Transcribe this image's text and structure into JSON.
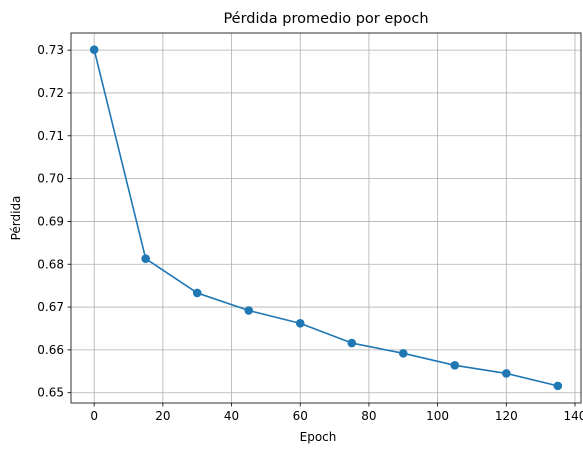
{
  "chart_data": {
    "type": "line",
    "title": "Pérdida promedio por epoch",
    "xlabel": "Epoch",
    "ylabel": "Pérdida",
    "x": [
      0,
      15,
      30,
      45,
      60,
      75,
      90,
      105,
      120,
      135
    ],
    "series": [
      {
        "values": [
          0.7301,
          0.6813,
          0.6733,
          0.6692,
          0.6662,
          0.6616,
          0.6592,
          0.6564,
          0.6545,
          0.6516
        ],
        "color": "#1f77b4",
        "marker": "circle"
      }
    ],
    "xlim": [
      -6.75,
      141.75
    ],
    "ylim": [
      0.6476,
      0.734
    ],
    "xticks": [
      0,
      20,
      40,
      60,
      80,
      100,
      120,
      140
    ],
    "yticks": [
      0.65,
      0.66,
      0.67,
      0.68,
      0.69,
      0.7,
      0.71,
      0.72,
      0.73
    ],
    "ytick_labels": [
      "0.65",
      "0.66",
      "0.67",
      "0.68",
      "0.69",
      "0.70",
      "0.71",
      "0.72",
      "0.73"
    ],
    "grid": true
  }
}
